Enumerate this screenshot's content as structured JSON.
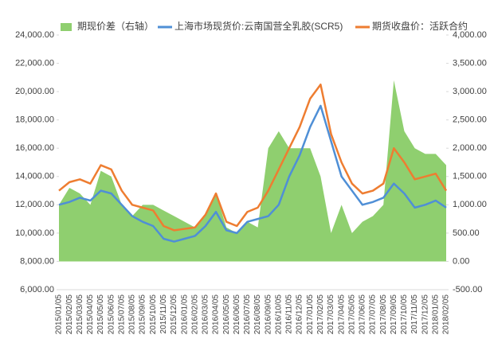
{
  "chart_data": {
    "type": "line",
    "categories": [
      "2015/01/05",
      "2015/02/05",
      "2015/03/05",
      "2015/04/05",
      "2015/05/05",
      "2015/06/05",
      "2015/07/05",
      "2015/08/05",
      "2015/09/05",
      "2015/10/05",
      "2015/11/05",
      "2015/12/05",
      "2016/01/05",
      "2016/02/05",
      "2016/03/05",
      "2016/04/05",
      "2016/05/05",
      "2016/06/05",
      "2016/07/05",
      "2016/08/05",
      "2016/09/05",
      "2016/10/05",
      "2016/11/05",
      "2016/12/05",
      "2017/01/05",
      "2017/02/05",
      "2017/03/05",
      "2017/04/05",
      "2017/05/05",
      "2017/06/05",
      "2017/07/05",
      "2017/08/05",
      "2017/09/05",
      "2017/10/05",
      "2017/11/05",
      "2017/12/05",
      "2018/01/05",
      "2018/02/05"
    ],
    "series": [
      {
        "name": "期现价差（右轴）",
        "color": "#8fcf6f",
        "axis": "y2",
        "kind": "area",
        "values": [
          1000,
          1300,
          1200,
          1000,
          1600,
          1500,
          1000,
          800,
          1000,
          1000,
          900,
          800,
          700,
          600,
          800,
          1200,
          600,
          500,
          700,
          600,
          2000,
          2300,
          2000,
          2000,
          2000,
          1500,
          500,
          1000,
          500,
          700,
          800,
          1000,
          3200,
          2300,
          2000,
          1900,
          1900,
          1700
        ]
      },
      {
        "name": "上海市场现货价:云南国营全乳胶(SCR5)",
        "color": "#4f8fd6",
        "kind": "line",
        "values": [
          12000,
          12200,
          12500,
          12300,
          13000,
          12800,
          12000,
          11200,
          10800,
          10500,
          9600,
          9400,
          9600,
          9800,
          10500,
          11500,
          10200,
          10000,
          10800,
          11000,
          11200,
          12000,
          14000,
          15500,
          17500,
          19000,
          16500,
          14000,
          13000,
          12000,
          12200,
          12500,
          13500,
          12800,
          11800,
          12000,
          12300,
          11800
        ]
      },
      {
        "name": "期货收盘价：活跃合约",
        "color": "#ee7d31",
        "kind": "line",
        "values": [
          13000,
          13600,
          13800,
          13500,
          14800,
          14500,
          13000,
          12000,
          11800,
          11600,
          10500,
          10200,
          10300,
          10400,
          11300,
          12800,
          10800,
          10500,
          11500,
          11800,
          13000,
          14500,
          16000,
          17500,
          19500,
          20500,
          17000,
          15000,
          13500,
          12800,
          13000,
          13500,
          16000,
          15000,
          13800,
          14000,
          14200,
          13000
        ]
      }
    ],
    "ylim": [
      6000,
      24000
    ],
    "yticks": [
      {
        "value": 6000,
        "label": "6,000.00"
      },
      {
        "value": 8000,
        "label": "8,000.00"
      },
      {
        "value": 10000,
        "label": "10,000.00"
      },
      {
        "value": 12000,
        "label": "12,000.00"
      },
      {
        "value": 14000,
        "label": "14,000.00"
      },
      {
        "value": 16000,
        "label": "16,000.00"
      },
      {
        "value": 18000,
        "label": "18,000.00"
      },
      {
        "value": 20000,
        "label": "20,000.00"
      },
      {
        "value": 22000,
        "label": "22,000.00"
      },
      {
        "value": 24000,
        "label": "24,000.00"
      }
    ],
    "y2lim": [
      -500,
      4000
    ],
    "y2ticks": [
      {
        "value": -500,
        "label": "-500.00"
      },
      {
        "value": 0,
        "label": "0.00"
      },
      {
        "value": 500,
        "label": "500.00"
      },
      {
        "value": 1000,
        "label": "1,000.00"
      },
      {
        "value": 1500,
        "label": "1,500.00"
      },
      {
        "value": 2000,
        "label": "2,000.00"
      },
      {
        "value": 2500,
        "label": "2,500.00"
      },
      {
        "value": 3000,
        "label": "3,000.00"
      },
      {
        "value": 3500,
        "label": "3,500.00"
      },
      {
        "value": 4000,
        "label": "4,000.00"
      }
    ]
  }
}
